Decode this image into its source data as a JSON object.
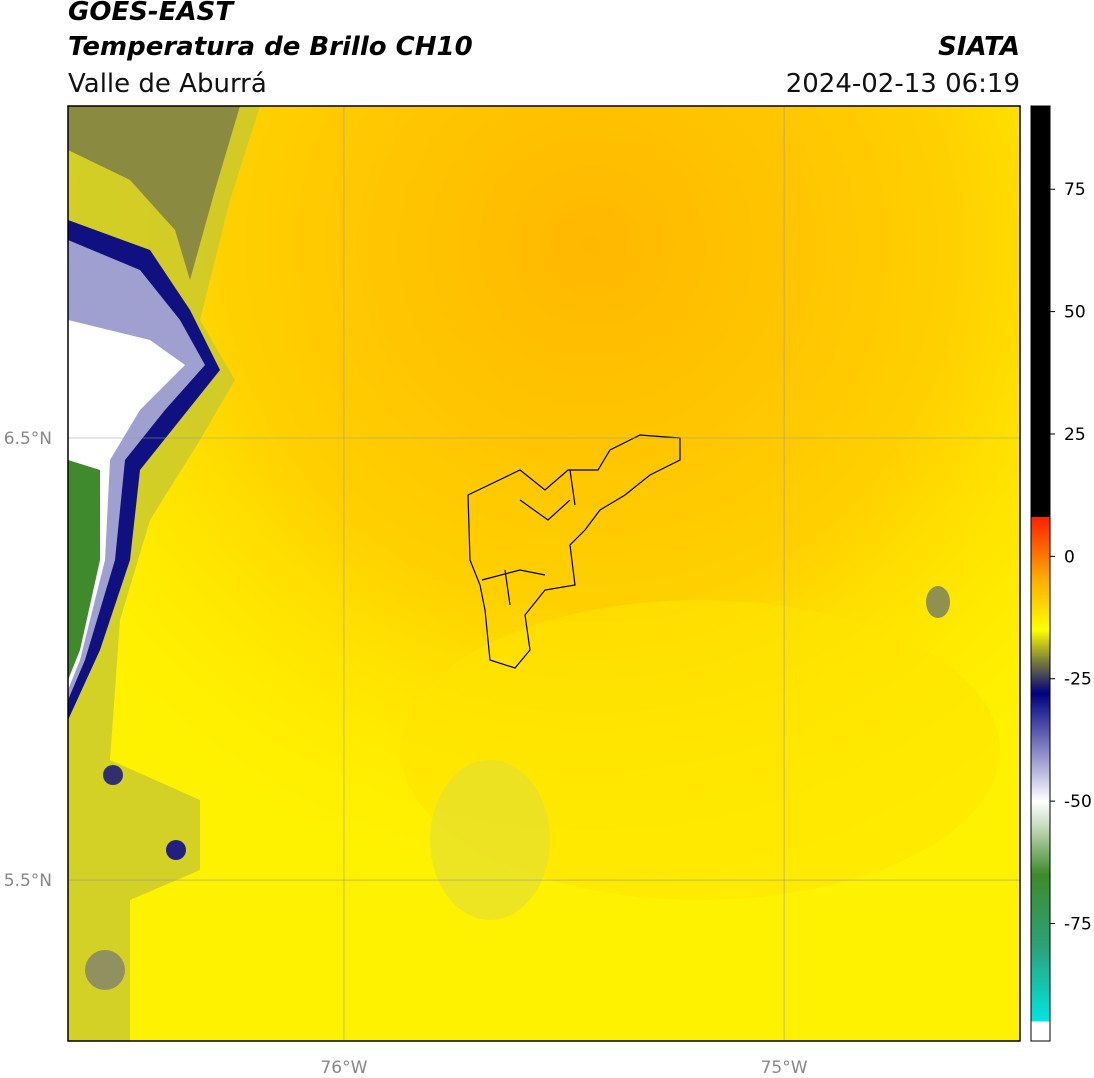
{
  "header": {
    "title": "GOES-EAST",
    "subtitle": "Temperatura de Brillo CH10",
    "region": "Valle de Aburrá",
    "source": "SIATA",
    "datetime": "2024-02-13 06:19"
  },
  "map": {
    "xlim": [
      -76.627,
      -74.464
    ],
    "ylim": [
      5.136,
      7.251
    ],
    "xticks": [
      {
        "value": -76,
        "label": "76°W"
      },
      {
        "value": -75,
        "label": "75°W"
      }
    ],
    "yticks": [
      {
        "value": 6.5,
        "label": "6.5°N"
      },
      {
        "value": 5.5,
        "label": "5.5°N"
      }
    ],
    "grid": true
  },
  "colorbar": {
    "lim": [
      -99,
      92
    ],
    "ticks": [
      75,
      50,
      25,
      0,
      -25,
      -50,
      -75
    ],
    "stops": [
      {
        "value": -99,
        "color": "#ffffff"
      },
      {
        "value": -95,
        "color": "#ffffff"
      },
      {
        "value": -95,
        "color": "#00e5e0"
      },
      {
        "value": -80,
        "color": "#2aa37a"
      },
      {
        "value": -65,
        "color": "#3f8a2c"
      },
      {
        "value": -55,
        "color": "#c8dcc0"
      },
      {
        "value": -50,
        "color": "#ffffff"
      },
      {
        "value": -40,
        "color": "#8a8ac8"
      },
      {
        "value": -28,
        "color": "#000080"
      },
      {
        "value": -22,
        "color": "#707040"
      },
      {
        "value": -15,
        "color": "#ffff00"
      },
      {
        "value": -5,
        "color": "#ffb000"
      },
      {
        "value": 8,
        "color": "#ff2000"
      },
      {
        "value": 8,
        "color": "#000000"
      },
      {
        "value": 92,
        "color": "#000000"
      }
    ]
  }
}
